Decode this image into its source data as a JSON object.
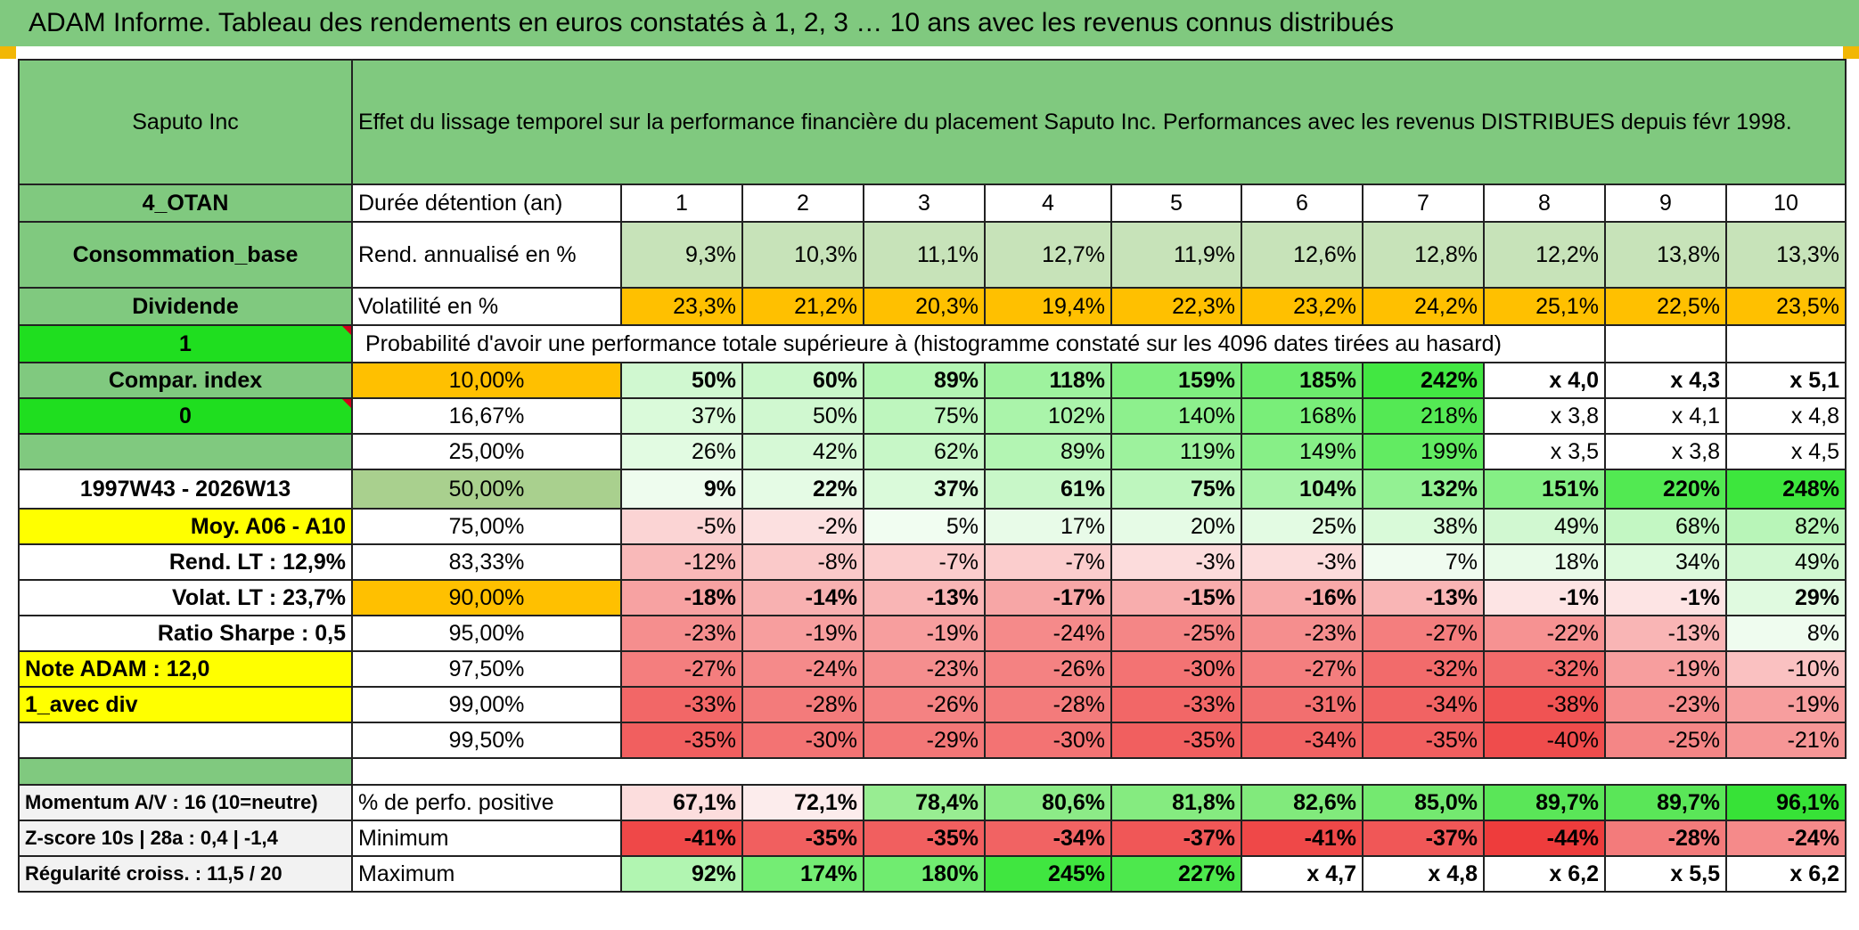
{
  "banner": "ADAM Informe. Tableau des rendements en euros constatés à 1, 2, 3 … 10 ans avec les revenus connus distribués",
  "colors": {
    "header_green": "#80c97f",
    "lime": "#1fde1f",
    "yellow": "#ffff00",
    "orange": "#ffc000",
    "red_text": "#d0021b"
  },
  "left": {
    "name": "Saputo Inc",
    "code": "4_OTAN",
    "sector": "Consommation_base",
    "dividend": "Dividende",
    "one": "1",
    "compar": "Compar. index",
    "zero": "0",
    "blank": "",
    "period": "1997W43 - 2026W13",
    "moy": "Moy. A06 - A10",
    "rend_lt": "Rend. LT :    12,9%",
    "volat_lt": "Volat. LT :    23,7%",
    "sharpe": "Ratio Sharpe :    0,5",
    "note": "Note ADAM : 12,0",
    "avec_div": "1_avec div",
    "momentum": "Momentum A/V : 16 (10=neutre)",
    "zscore": "Z-score 10s | 28a : 0,4 | -1,4",
    "regularite": "Régularité croiss. : 11,5 / 20"
  },
  "header_title": "Effet du lissage temporel sur la performance financière du placement Saputo Inc. Performances avec les revenus DISTRIBUES depuis févr 1998.",
  "rows": {
    "duree": {
      "label": "Durée détention (an)",
      "values": [
        "1",
        "2",
        "3",
        "4",
        "5",
        "6",
        "7",
        "8",
        "9",
        "10"
      ]
    },
    "rend": {
      "label": "Rend. annualisé en %",
      "values": [
        "9,3%",
        "10,3%",
        "11,1%",
        "12,7%",
        "11,9%",
        "12,6%",
        "12,8%",
        "12,2%",
        "13,8%",
        "13,3%"
      ]
    },
    "vol": {
      "label": "Volatilité en %",
      "values": [
        "23,3%",
        "21,2%",
        "20,3%",
        "19,4%",
        "22,3%",
        "23,2%",
        "24,2%",
        "25,1%",
        "22,5%",
        "23,5%"
      ]
    },
    "proba_title": "Probabilité d'avoir une performance totale supérieure à (histogramme constaté sur les 4096 dates tirées au hasard)"
  },
  "probabilities": [
    {
      "pct": "10,00%",
      "values": [
        "50%",
        "60%",
        "89%",
        "118%",
        "159%",
        "185%",
        "242%",
        "x 4,0",
        "x 4,3",
        "x 5,1"
      ]
    },
    {
      "pct": "16,67%",
      "values": [
        "37%",
        "50%",
        "75%",
        "102%",
        "140%",
        "168%",
        "218%",
        "x 3,8",
        "x 4,1",
        "x 4,8"
      ]
    },
    {
      "pct": "25,00%",
      "values": [
        "26%",
        "42%",
        "62%",
        "89%",
        "119%",
        "149%",
        "199%",
        "x 3,5",
        "x 3,8",
        "x 4,5"
      ]
    },
    {
      "pct": "50,00%",
      "values": [
        "9%",
        "22%",
        "37%",
        "61%",
        "75%",
        "104%",
        "132%",
        "151%",
        "220%",
        "248%"
      ]
    },
    {
      "pct": "75,00%",
      "values": [
        "-5%",
        "-2%",
        "5%",
        "17%",
        "20%",
        "25%",
        "38%",
        "49%",
        "68%",
        "82%"
      ]
    },
    {
      "pct": "83,33%",
      "values": [
        "-12%",
        "-8%",
        "-7%",
        "-7%",
        "-3%",
        "-3%",
        "7%",
        "18%",
        "34%",
        "49%"
      ]
    },
    {
      "pct": "90,00%",
      "values": [
        "-18%",
        "-14%",
        "-13%",
        "-17%",
        "-15%",
        "-16%",
        "-13%",
        "-1%",
        "-1%",
        "29%"
      ]
    },
    {
      "pct": "95,00%",
      "values": [
        "-23%",
        "-19%",
        "-19%",
        "-24%",
        "-25%",
        "-23%",
        "-27%",
        "-22%",
        "-13%",
        "8%"
      ]
    },
    {
      "pct": "97,50%",
      "values": [
        "-27%",
        "-24%",
        "-23%",
        "-26%",
        "-30%",
        "-27%",
        "-32%",
        "-32%",
        "-19%",
        "-10%"
      ]
    },
    {
      "pct": "99,00%",
      "values": [
        "-33%",
        "-28%",
        "-26%",
        "-28%",
        "-33%",
        "-31%",
        "-34%",
        "-38%",
        "-23%",
        "-19%"
      ]
    },
    {
      "pct": "99,50%",
      "values": [
        "-35%",
        "-30%",
        "-29%",
        "-30%",
        "-35%",
        "-34%",
        "-35%",
        "-40%",
        "-25%",
        "-21%"
      ]
    }
  ],
  "summary": [
    {
      "label": "% de perfo. positive",
      "values": [
        "67,1%",
        "72,1%",
        "78,4%",
        "80,6%",
        "81,8%",
        "82,6%",
        "85,0%",
        "89,7%",
        "89,7%",
        "96,1%"
      ]
    },
    {
      "label": "Minimum",
      "values": [
        "-41%",
        "-35%",
        "-35%",
        "-34%",
        "-37%",
        "-41%",
        "-37%",
        "-44%",
        "-28%",
        "-24%"
      ]
    },
    {
      "label": "Maximum",
      "values": [
        "92%",
        "174%",
        "180%",
        "245%",
        "227%",
        "x 4,7",
        "x 4,8",
        "x 6,2",
        "x 5,5",
        "x 6,2"
      ]
    }
  ]
}
